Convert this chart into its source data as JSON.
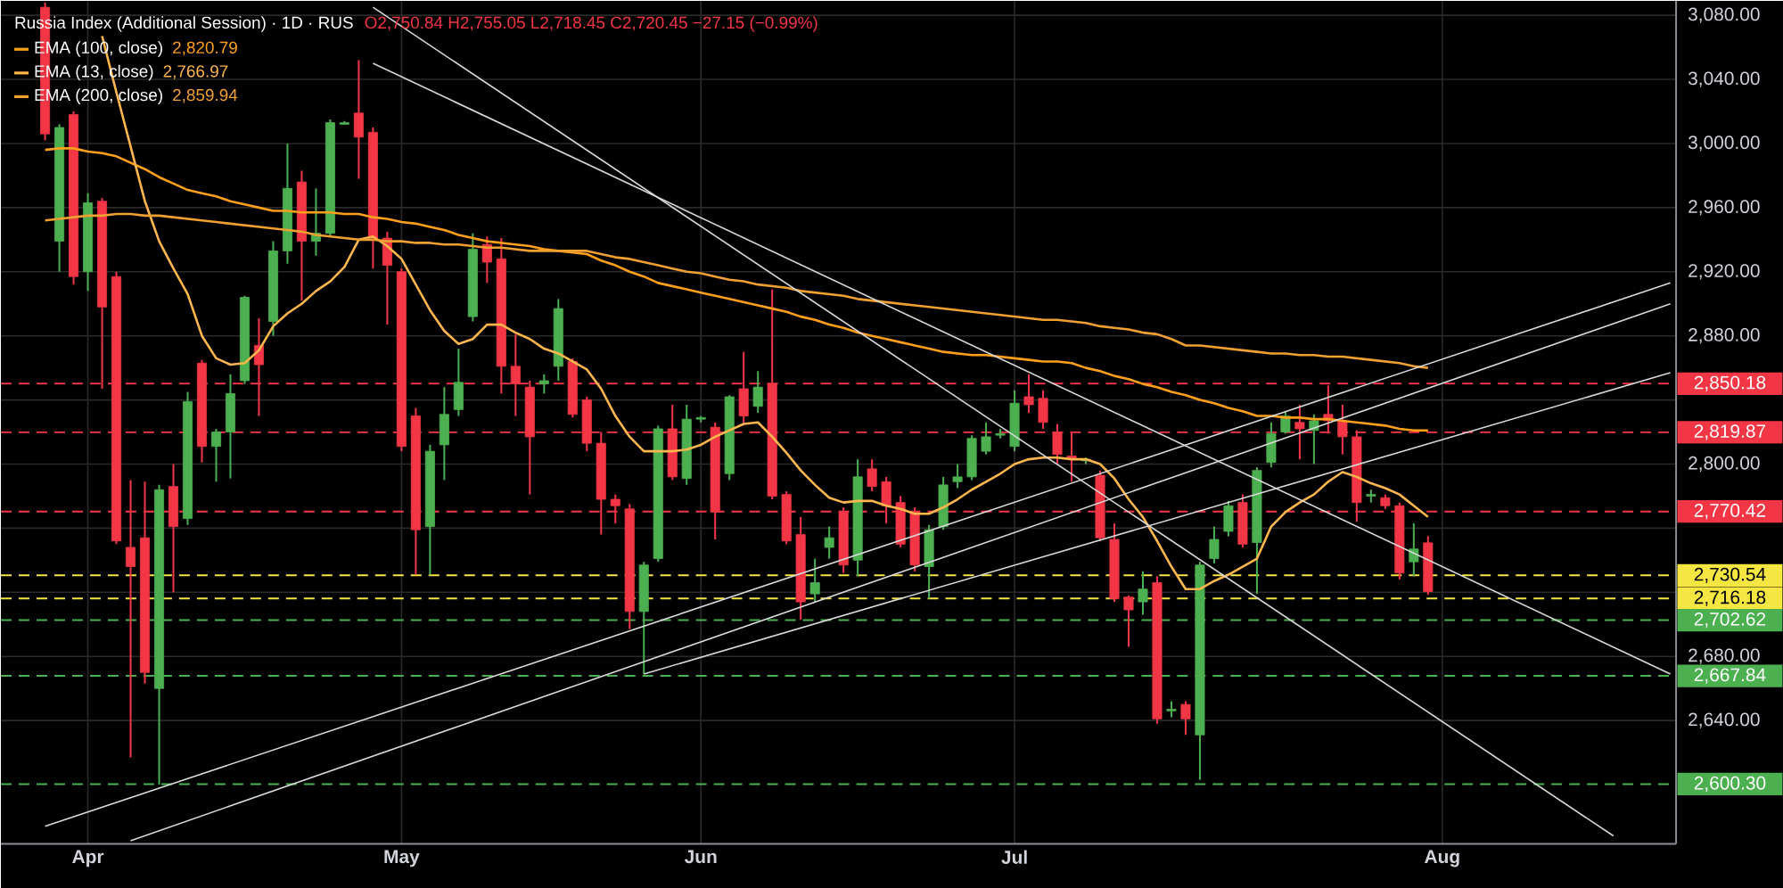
{
  "chart_data": {
    "type": "candlestick",
    "title": "Russia Index (Additional Session) · 1D · RUS",
    "subtitle": "O2,750.84 H2,755.05 L2,718.45 C2,720.45 −27.15 (−0.99%)",
    "categories": [
      null,
      null,
      null,
      "Apr",
      null,
      null,
      null,
      null,
      null,
      null,
      null,
      null,
      null,
      null,
      null,
      null,
      null,
      null,
      null,
      null,
      null,
      null,
      null,
      null,
      null,
      "May",
      null,
      null,
      null,
      null,
      null,
      null,
      null,
      null,
      null,
      null,
      null,
      null,
      null,
      null,
      null,
      null,
      null,
      null,
      null,
      null,
      "Jun",
      null,
      null,
      null,
      null,
      null,
      null,
      null,
      null,
      null,
      null,
      null,
      null,
      null,
      null,
      null,
      null,
      null,
      null,
      null,
      null,
      null,
      "Jul",
      null,
      null,
      null,
      null,
      null,
      null,
      null,
      null,
      null,
      null,
      null,
      null,
      null,
      null,
      null,
      null,
      null,
      null,
      null,
      null,
      null,
      null,
      null,
      null,
      null,
      null,
      null,
      null,
      null,
      "Aug",
      null,
      null,
      null,
      null,
      null,
      null,
      null,
      null,
      null,
      null,
      null,
      null,
      null,
      null,
      null,
      null
    ],
    "ohlc": [
      [
        3085,
        3088,
        3002,
        3006
      ],
      [
        2939,
        3012,
        2920,
        3010
      ],
      [
        3018,
        3020,
        2912,
        2917
      ],
      [
        2920,
        2969,
        2908,
        2963
      ],
      [
        2964,
        2966,
        2847,
        2898
      ],
      [
        2917,
        2920,
        2750,
        2752
      ],
      [
        2748,
        2790,
        2617,
        2736
      ],
      [
        2754,
        2789,
        2663,
        2670
      ],
      [
        2660,
        2787,
        2600,
        2784
      ],
      [
        2786,
        2800,
        2720,
        2761
      ],
      [
        2766,
        2845,
        2762,
        2839
      ],
      [
        2863,
        2865,
        2801,
        2811
      ],
      [
        2811,
        2822,
        2789,
        2820
      ],
      [
        2820,
        2856,
        2791,
        2844
      ],
      [
        2852,
        2905,
        2850,
        2904
      ],
      [
        2874,
        2891,
        2830,
        2862
      ],
      [
        2889,
        2939,
        2880,
        2933
      ],
      [
        2933,
        3000,
        2925,
        2972
      ],
      [
        2976,
        2983,
        2902,
        2939
      ],
      [
        2939,
        2972,
        2930,
        2944
      ],
      [
        2944,
        3015,
        2942,
        3013
      ],
      [
        3012,
        3014,
        3012,
        3013
      ],
      [
        3019,
        3052,
        2978,
        3004
      ],
      [
        3007,
        3010,
        2922,
        2941
      ],
      [
        2941,
        2945,
        2887,
        2924
      ],
      [
        2920,
        2922,
        2808,
        2811
      ],
      [
        2830,
        2835,
        2731,
        2759
      ],
      [
        2761,
        2812,
        2731,
        2808
      ],
      [
        2812,
        2848,
        2790,
        2831
      ],
      [
        2834,
        2872,
        2830,
        2851
      ],
      [
        2892,
        2944,
        2889,
        2934
      ],
      [
        2937,
        2942,
        2913,
        2926
      ],
      [
        2928,
        2941,
        2844,
        2861
      ],
      [
        2861,
        2881,
        2830,
        2850
      ],
      [
        2848,
        2852,
        2781,
        2817
      ],
      [
        2850,
        2856,
        2844,
        2852
      ],
      [
        2861,
        2903,
        2852,
        2897
      ],
      [
        2864,
        2866,
        2829,
        2831
      ],
      [
        2840,
        2842,
        2808,
        2813
      ],
      [
        2813,
        2820,
        2756,
        2778
      ],
      [
        2778,
        2781,
        2763,
        2774
      ],
      [
        2772,
        2775,
        2697,
        2708
      ],
      [
        2708,
        2739,
        2669,
        2737
      ],
      [
        2741,
        2824,
        2739,
        2822
      ],
      [
        2822,
        2837,
        2790,
        2792
      ],
      [
        2791,
        2837,
        2787,
        2828
      ],
      [
        2828,
        2830,
        2826,
        2829
      ],
      [
        2823,
        2826,
        2753,
        2770
      ],
      [
        2794,
        2843,
        2790,
        2842
      ],
      [
        2847,
        2870,
        2825,
        2830
      ],
      [
        2836,
        2858,
        2832,
        2848
      ],
      [
        2850,
        2909,
        2778,
        2780
      ],
      [
        2781,
        2783,
        2750,
        2752
      ],
      [
        2756,
        2767,
        2703,
        2714
      ],
      [
        2719,
        2741,
        2714,
        2726
      ],
      [
        2748,
        2761,
        2741,
        2754
      ],
      [
        2770,
        2773,
        2732,
        2737
      ],
      [
        2740,
        2803,
        2730,
        2792
      ],
      [
        2797,
        2803,
        2783,
        2786
      ],
      [
        2789,
        2792,
        2763,
        2774
      ],
      [
        2776,
        2780,
        2748,
        2750
      ],
      [
        2770,
        2773,
        2733,
        2737
      ],
      [
        2736,
        2762,
        2716,
        2759
      ],
      [
        2761,
        2792,
        2759,
        2787
      ],
      [
        2789,
        2800,
        2785,
        2792
      ],
      [
        2792,
        2818,
        2790,
        2816
      ],
      [
        2808,
        2826,
        2806,
        2817
      ],
      [
        2818,
        2822,
        2816,
        2819
      ],
      [
        2811,
        2846,
        2808,
        2838
      ],
      [
        2842,
        2856,
        2832,
        2837
      ],
      [
        2841,
        2846,
        2822,
        2826
      ],
      [
        2820,
        2825,
        2800,
        2806
      ],
      [
        2805,
        2820,
        2789,
        2803
      ],
      [
        2802,
        2804,
        2800,
        2803
      ],
      [
        2793,
        2796,
        2752,
        2754
      ],
      [
        2753,
        2763,
        2714,
        2716
      ],
      [
        2717,
        2718,
        2686,
        2709
      ],
      [
        2714,
        2733,
        2706,
        2722
      ],
      [
        2726,
        2730,
        2638,
        2641
      ],
      [
        2646,
        2652,
        2642,
        2647
      ],
      [
        2650,
        2652,
        2631,
        2641
      ],
      [
        2631,
        2739,
        2603,
        2737
      ],
      [
        2741,
        2761,
        2738,
        2753
      ],
      [
        2758,
        2777,
        2755,
        2774
      ],
      [
        2776,
        2781,
        2748,
        2750
      ],
      [
        2751,
        2798,
        2719,
        2796
      ],
      [
        2801,
        2826,
        2798,
        2819
      ],
      [
        2820,
        2833,
        2819,
        2830
      ],
      [
        2826,
        2837,
        2803,
        2822
      ],
      [
        2821,
        2831,
        2800,
        2827
      ],
      [
        2831,
        2849,
        2819,
        2827
      ],
      [
        2827,
        2837,
        2806,
        2817
      ],
      [
        2817,
        2821,
        2764,
        2776
      ],
      [
        2780,
        2784,
        2776,
        2781
      ],
      [
        2779,
        2781,
        2772,
        2774
      ],
      [
        2774,
        2776,
        2728,
        2732
      ],
      [
        2739,
        2763,
        2730,
        2747
      ],
      [
        2750.84,
        2755.05,
        2718.45,
        2720.45
      ],
      null,
      null,
      null,
      null,
      null,
      null,
      null,
      null,
      null,
      null,
      null,
      null,
      null,
      null,
      null,
      null,
      null
    ],
    "series": [
      {
        "type": "line",
        "name": "EMA (100, close)",
        "color": "#ff9f1a",
        "values": [
          2996,
          2997,
          2997,
          2995,
          2994,
          2992,
          2988,
          2984,
          2979,
          2975,
          2971,
          2969,
          2967,
          2964,
          2962,
          2960,
          2958,
          2958,
          2957,
          2957,
          2957,
          2956,
          2956,
          2954,
          2953,
          2951,
          2950,
          2948,
          2946,
          2943,
          2941,
          2939,
          2938,
          2937,
          2936,
          2934,
          2933,
          2932,
          2931,
          2927,
          2924,
          2920,
          2917,
          2913,
          2911,
          2909,
          2907,
          2905,
          2903,
          2901,
          2899,
          2897,
          2895,
          2892,
          2890,
          2887,
          2885,
          2882,
          2880,
          2878,
          2876,
          2874,
          2872,
          2870,
          2869,
          2868,
          2868,
          2867,
          2866,
          2865,
          2864,
          2864,
          2863,
          2860,
          2858,
          2855,
          2853,
          2850,
          2848,
          2845,
          2843,
          2840,
          2838,
          2835,
          2833,
          2830,
          2830,
          2829,
          2829,
          2828,
          2828,
          2827,
          2826,
          2825,
          2824,
          2822,
          2821,
          2821,
          null,
          null,
          null,
          null,
          null,
          null,
          null,
          null,
          null,
          null,
          null,
          null,
          null,
          null,
          null,
          null,
          null
        ]
      },
      {
        "type": "line",
        "name": "EMA (13, close)",
        "color": "#ffb74d",
        "values": [
          null,
          null,
          null,
          null,
          3067,
          3032,
          2998,
          2964,
          2939,
          2922,
          2906,
          2880,
          2866,
          2862,
          2863,
          2871,
          2886,
          2894,
          2900,
          2908,
          2914,
          2923,
          2940,
          2942,
          2936,
          2928,
          2912,
          2896,
          2883,
          2875,
          2878,
          2887,
          2887,
          2882,
          2878,
          2872,
          2869,
          2864,
          2859,
          2847,
          2830,
          2817,
          2808,
          2808,
          2808,
          2809,
          2812,
          2817,
          2821,
          2825,
          2826,
          2817,
          2807,
          2796,
          2787,
          2779,
          2776,
          2777,
          2777,
          2774,
          2772,
          2769,
          2769,
          2773,
          2778,
          2784,
          2789,
          2794,
          2800,
          2803,
          2804,
          2804,
          2803,
          2803,
          2800,
          2791,
          2778,
          2767,
          2752,
          2736,
          2722,
          2722,
          2727,
          2731,
          2736,
          2741,
          2761,
          2770,
          2776,
          2781,
          2789,
          2795,
          2792,
          2788,
          2785,
          2781,
          2774,
          2767,
          null,
          null,
          null,
          null,
          null,
          null,
          null,
          null,
          null,
          null,
          null,
          null,
          null,
          null,
          null,
          null,
          null
        ]
      },
      {
        "type": "line",
        "name": "EMA (200, close)",
        "color": "#f0a030",
        "values": [
          2952,
          2953,
          2954,
          2955,
          2955,
          2956,
          2956,
          2955,
          2955,
          2954,
          2953,
          2952,
          2951,
          2950,
          2949,
          2948,
          2947,
          2946,
          2945,
          2943,
          2942,
          2941,
          2940,
          2940,
          2939,
          2939,
          2938,
          2938,
          2937,
          2937,
          2936,
          2935,
          2935,
          2934,
          2933,
          2933,
          2933,
          2933,
          2933,
          2931,
          2929,
          2928,
          2926,
          2924,
          2922,
          2920,
          2919,
          2917,
          2915,
          2914,
          2912,
          2911,
          2910,
          2908,
          2907,
          2906,
          2905,
          2903,
          2902,
          2901,
          2900,
          2899,
          2898,
          2897,
          2896,
          2895,
          2894,
          2893,
          2892,
          2891,
          2890,
          2890,
          2889,
          2888,
          2886,
          2885,
          2884,
          2882,
          2881,
          2878,
          2874,
          2874,
          2873,
          2872,
          2871,
          2870,
          2869,
          2869,
          2868,
          2868,
          2867,
          2867,
          2866,
          2865,
          2864,
          2863,
          2861,
          2860,
          null,
          null,
          null,
          null,
          null,
          null,
          null,
          null,
          null,
          null,
          null,
          null,
          null,
          null,
          null,
          null,
          null
        ]
      },
      {
        "type": "line",
        "color": "#d9d9d9",
        "values": [
          null,
          null,
          null,
          null,
          null,
          null,
          null,
          null,
          null,
          null,
          null,
          null,
          null,
          null,
          null,
          null,
          null,
          null,
          null,
          null,
          null,
          null,
          null,
          3050,
          null,
          null,
          null,
          null,
          null,
          null,
          null,
          null,
          null,
          null,
          null,
          null,
          null,
          null,
          null,
          null,
          null,
          null,
          null,
          null,
          null,
          null,
          null,
          null,
          null,
          null,
          null,
          null,
          null,
          null,
          null,
          null,
          null,
          null,
          null,
          null,
          null,
          null,
          null,
          null,
          null,
          null,
          null,
          null,
          null,
          null,
          null,
          null,
          null,
          null,
          null,
          null,
          null,
          null,
          null,
          null,
          null,
          null,
          null,
          null,
          null,
          null,
          null,
          null,
          null,
          null,
          null,
          null,
          null,
          null,
          null,
          null,
          null,
          null,
          null,
          null,
          null,
          null,
          null,
          null,
          null,
          null,
          null,
          null,
          null,
          null,
          null,
          null,
          null,
          null,
          2669
        ]
      },
      {
        "type": "line",
        "color": "#d9d9d9",
        "values": [
          null,
          null,
          null,
          null,
          null,
          null,
          null,
          null,
          null,
          null,
          null,
          null,
          null,
          null,
          null,
          null,
          null,
          null,
          null,
          null,
          null,
          null,
          null,
          3085,
          null,
          null,
          null,
          null,
          null,
          null,
          null,
          null,
          null,
          null,
          null,
          null,
          null,
          null,
          null,
          null,
          null,
          null,
          null,
          null,
          null,
          null,
          null,
          null,
          null,
          null,
          null,
          null,
          null,
          null,
          null,
          null,
          null,
          null,
          null,
          null,
          null,
          null,
          null,
          null,
          null,
          null,
          null,
          null,
          null,
          null,
          null,
          null,
          null,
          null,
          null,
          null,
          null,
          null,
          null,
          null,
          null,
          null,
          null,
          null,
          null,
          null,
          null,
          null,
          null,
          null,
          null,
          null,
          null,
          null,
          null,
          null,
          null,
          null,
          null,
          null,
          null,
          null,
          null,
          null,
          null,
          null,
          null,
          null,
          null,
          null,
          2568,
          null,
          null,
          null,
          null
        ]
      },
      {
        "type": "line",
        "color": "#d9d9d9",
        "values": [
          2574,
          null,
          null,
          null,
          null,
          null,
          null,
          null,
          null,
          null,
          null,
          null,
          null,
          null,
          null,
          null,
          null,
          null,
          null,
          null,
          null,
          null,
          null,
          null,
          null,
          null,
          null,
          null,
          null,
          null,
          null,
          null,
          null,
          null,
          null,
          null,
          null,
          null,
          null,
          null,
          null,
          null,
          null,
          null,
          null,
          null,
          null,
          null,
          null,
          null,
          null,
          null,
          null,
          null,
          null,
          null,
          null,
          null,
          null,
          null,
          null,
          null,
          null,
          null,
          null,
          null,
          null,
          null,
          null,
          null,
          null,
          null,
          null,
          null,
          null,
          null,
          null,
          null,
          null,
          null,
          null,
          null,
          null,
          null,
          null,
          null,
          null,
          null,
          null,
          null,
          null,
          null,
          null,
          null,
          null,
          null,
          null,
          null,
          null,
          null,
          null,
          null,
          null,
          null,
          null,
          null,
          null,
          null,
          null,
          null,
          null,
          null,
          null,
          null,
          2913
        ]
      },
      {
        "type": "line",
        "color": "#d9d9d9",
        "values": [
          null,
          null,
          null,
          null,
          null,
          null,
          2565,
          null,
          null,
          null,
          null,
          null,
          null,
          null,
          null,
          null,
          null,
          null,
          null,
          null,
          null,
          null,
          null,
          null,
          null,
          null,
          null,
          null,
          null,
          null,
          null,
          null,
          null,
          null,
          null,
          null,
          null,
          null,
          null,
          null,
          null,
          null,
          null,
          null,
          null,
          null,
          null,
          null,
          null,
          null,
          null,
          null,
          null,
          null,
          null,
          null,
          null,
          null,
          null,
          null,
          null,
          null,
          null,
          null,
          null,
          null,
          null,
          null,
          null,
          null,
          null,
          null,
          null,
          null,
          null,
          null,
          null,
          null,
          null,
          null,
          null,
          null,
          null,
          null,
          null,
          null,
          null,
          null,
          null,
          null,
          null,
          null,
          null,
          null,
          null,
          null,
          null,
          null,
          null,
          null,
          null,
          null,
          null,
          null,
          null,
          null,
          null,
          null,
          null,
          null,
          null,
          null,
          null,
          null,
          2900
        ]
      },
      {
        "type": "line",
        "color": "#d9d9d9",
        "values": [
          null,
          null,
          null,
          null,
          null,
          null,
          null,
          null,
          null,
          null,
          null,
          null,
          null,
          null,
          null,
          null,
          null,
          null,
          null,
          null,
          null,
          null,
          null,
          null,
          null,
          null,
          null,
          null,
          null,
          null,
          null,
          null,
          null,
          null,
          null,
          null,
          null,
          null,
          null,
          null,
          null,
          null,
          2669,
          null,
          null,
          null,
          null,
          null,
          null,
          null,
          null,
          null,
          null,
          null,
          null,
          null,
          null,
          null,
          null,
          null,
          null,
          null,
          null,
          null,
          null,
          null,
          null,
          null,
          null,
          null,
          null,
          null,
          null,
          null,
          null,
          null,
          null,
          null,
          null,
          null,
          null,
          null,
          null,
          null,
          null,
          null,
          null,
          null,
          null,
          null,
          null,
          null,
          null,
          null,
          null,
          null,
          null,
          null,
          null,
          null,
          null,
          null,
          null,
          null,
          null,
          null,
          null,
          null,
          null,
          null,
          null,
          null,
          null,
          null,
          2857
        ]
      }
    ],
    "ylim": [
      2563,
      3089
    ],
    "yticks": [
      {
        "value": 2640,
        "label": "2,640.00"
      },
      {
        "value": 2680,
        "label": "2,680.00"
      },
      {
        "value": 2720,
        "label": null
      },
      {
        "value": 2760,
        "label": null
      },
      {
        "value": 2800,
        "label": "2,800.00"
      },
      {
        "value": 2840,
        "label": null
      },
      {
        "value": 2880,
        "label": "2,880.00"
      },
      {
        "value": 2920,
        "label": "2,920.00"
      },
      {
        "value": 2960,
        "label": "2,960.00"
      },
      {
        "value": 3000,
        "label": "3,000.00"
      },
      {
        "value": 3040,
        "label": "3,040.00"
      },
      {
        "value": 3080,
        "label": "3,080.00"
      }
    ],
    "ref_lines": [
      {
        "axis": "y",
        "value": 2850.18,
        "label": "2,850.18",
        "color": "#f23645",
        "line_style": "dashed"
      },
      {
        "axis": "y",
        "value": 2819.87,
        "label": "2,819.87",
        "color": "#f23645",
        "line_style": "dashed"
      },
      {
        "axis": "y",
        "value": 2770.42,
        "label": "2,770.42",
        "color": "#f23645",
        "line_style": "dashed"
      },
      {
        "axis": "y",
        "value": 2730.54,
        "label": "2,730.54",
        "color": "#f5e642",
        "line_style": "dashed"
      },
      {
        "axis": "y",
        "value": 2716.18,
        "label": "2,716.18",
        "color": "#f5e642",
        "line_style": "dashed"
      },
      {
        "axis": "y",
        "value": 2702.62,
        "label": "2,702.62",
        "color": "#4caf50",
        "line_style": "dashed"
      },
      {
        "axis": "y",
        "value": 2667.84,
        "label": "2,667.84",
        "color": "#4caf50",
        "line_style": "dashed"
      },
      {
        "axis": "y",
        "value": 2600.3,
        "label": "2,600.30",
        "color": "#4caf50",
        "line_style": "dashed"
      }
    ],
    "annotations": [
      "2,820.79",
      "2,766.97",
      "2,859.94"
    ],
    "grid": true,
    "legend": "top left"
  }
}
